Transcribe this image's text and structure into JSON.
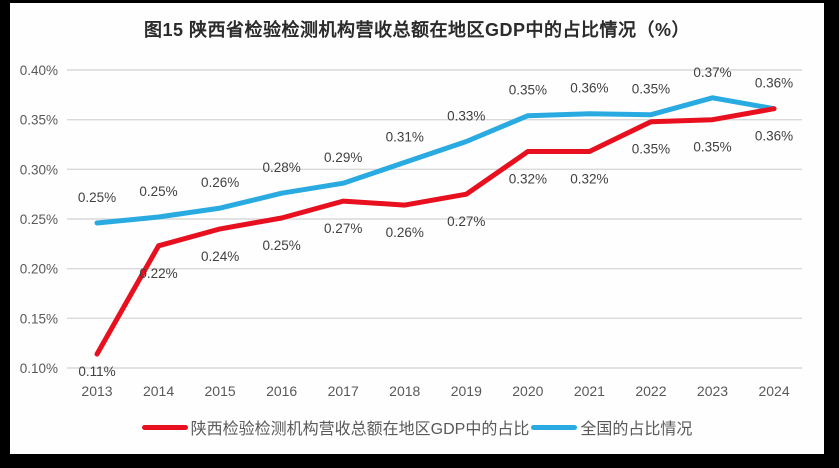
{
  "frame": {
    "border_color": "#000000",
    "panel_background": "#fefefe",
    "grid_color": "#d9d9d9",
    "axis_text_color": "#595959",
    "data_label_color": "#404040",
    "title_color": "#2b2b2b"
  },
  "chart_data": {
    "type": "line",
    "title": "图15 陕西省检验检测机构营收总额在地区GDP中的占比情况（%）",
    "categories": [
      "2013",
      "2014",
      "2015",
      "2016",
      "2017",
      "2018",
      "2019",
      "2020",
      "2021",
      "2022",
      "2023",
      "2024"
    ],
    "series": [
      {
        "name": "陕西检验检测机构营收总额在地区GDP中的占比",
        "color": "#e8101e",
        "labels": [
          "0.11%",
          "0.22%",
          "0.24%",
          "0.25%",
          "0.27%",
          "0.26%",
          "0.27%",
          "0.32%",
          "0.32%",
          "0.35%",
          "0.35%",
          "0.36%"
        ],
        "values": [
          0.11,
          0.22,
          0.24,
          0.25,
          0.27,
          0.26,
          0.27,
          0.32,
          0.32,
          0.35,
          0.35,
          0.36
        ],
        "values_plot": [
          0.114,
          0.223,
          0.24,
          0.251,
          0.268,
          0.264,
          0.275,
          0.318,
          0.318,
          0.348,
          0.35,
          0.361
        ],
        "label_side": "below",
        "label_dy": 32,
        "label_dy_overrides": {
          "0": 22
        }
      },
      {
        "name": "全国的占比情况",
        "color": "#29abe2",
        "labels": [
          "0.25%",
          "0.25%",
          "0.26%",
          "0.28%",
          "0.29%",
          "0.31%",
          "0.33%",
          "0.35%",
          "0.36%",
          "0.35%",
          "0.37%",
          "0.36%"
        ],
        "values": [
          0.25,
          0.25,
          0.26,
          0.28,
          0.29,
          0.31,
          0.33,
          0.35,
          0.36,
          0.35,
          0.37,
          0.36
        ],
        "values_plot": [
          0.246,
          0.252,
          0.261,
          0.276,
          0.286,
          0.307,
          0.328,
          0.354,
          0.356,
          0.355,
          0.372,
          0.361
        ],
        "label_side": "above",
        "label_dy": -21,
        "label_dy_overrides": {}
      }
    ],
    "ylim": [
      0.1,
      0.4
    ],
    "yticks": {
      "values": [
        0.4,
        0.35,
        0.3,
        0.25,
        0.2,
        0.15,
        0.1
      ],
      "labels": [
        "0.40%",
        "0.35%",
        "0.30%",
        "0.25%",
        "0.20%",
        "0.15%",
        "0.10%"
      ]
    },
    "grid": true,
    "legend_position": "bottom",
    "unit": "%"
  }
}
